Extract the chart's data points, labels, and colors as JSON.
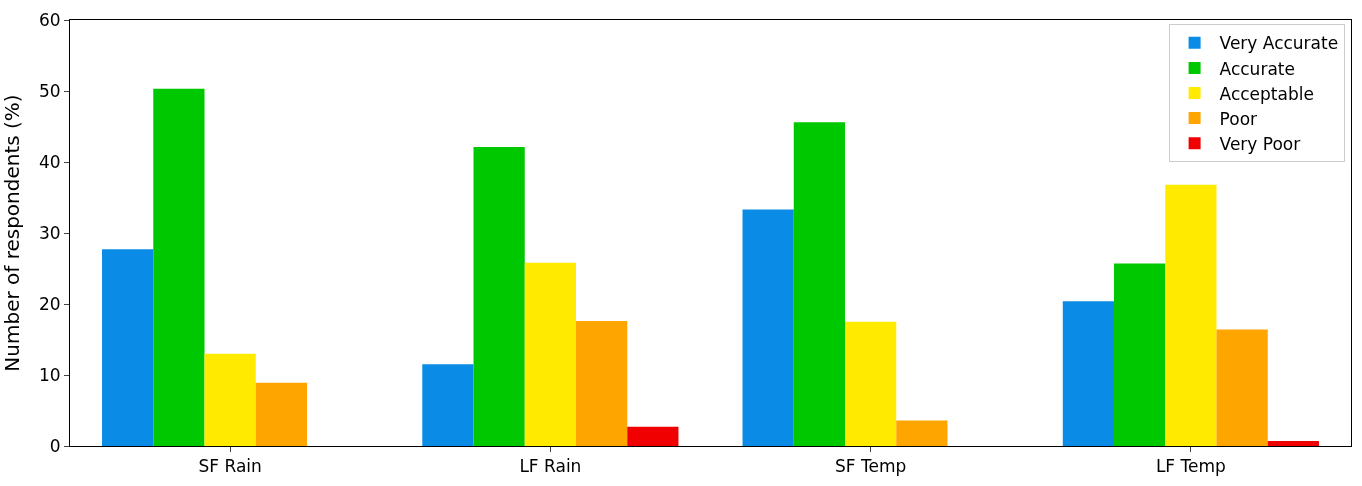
{
  "chart_data": {
    "type": "bar",
    "ylabel": "Number of respondents (%)",
    "categories": [
      "SF Rain",
      "LF Rain",
      "SF Temp",
      "LF Temp"
    ],
    "series": [
      {
        "name": "Very Accurate",
        "color": "#0a8be6",
        "values": [
          27.7,
          11.5,
          33.3,
          20.4
        ]
      },
      {
        "name": "Accurate",
        "color": "#00c800",
        "values": [
          50.3,
          42.1,
          45.6,
          25.7
        ]
      },
      {
        "name": "Acceptable",
        "color": "#ffea00",
        "values": [
          13.0,
          25.8,
          17.5,
          36.8
        ]
      },
      {
        "name": "Poor",
        "color": "#ffa500",
        "values": [
          8.9,
          17.6,
          3.6,
          16.4
        ]
      },
      {
        "name": "Very Poor",
        "color": "#f00000",
        "values": [
          0,
          2.7,
          0,
          0.7
        ]
      }
    ],
    "ylim": [
      0,
      60
    ],
    "yticks": [
      0,
      10,
      20,
      30,
      40,
      50,
      60
    ],
    "legend": "top right"
  }
}
